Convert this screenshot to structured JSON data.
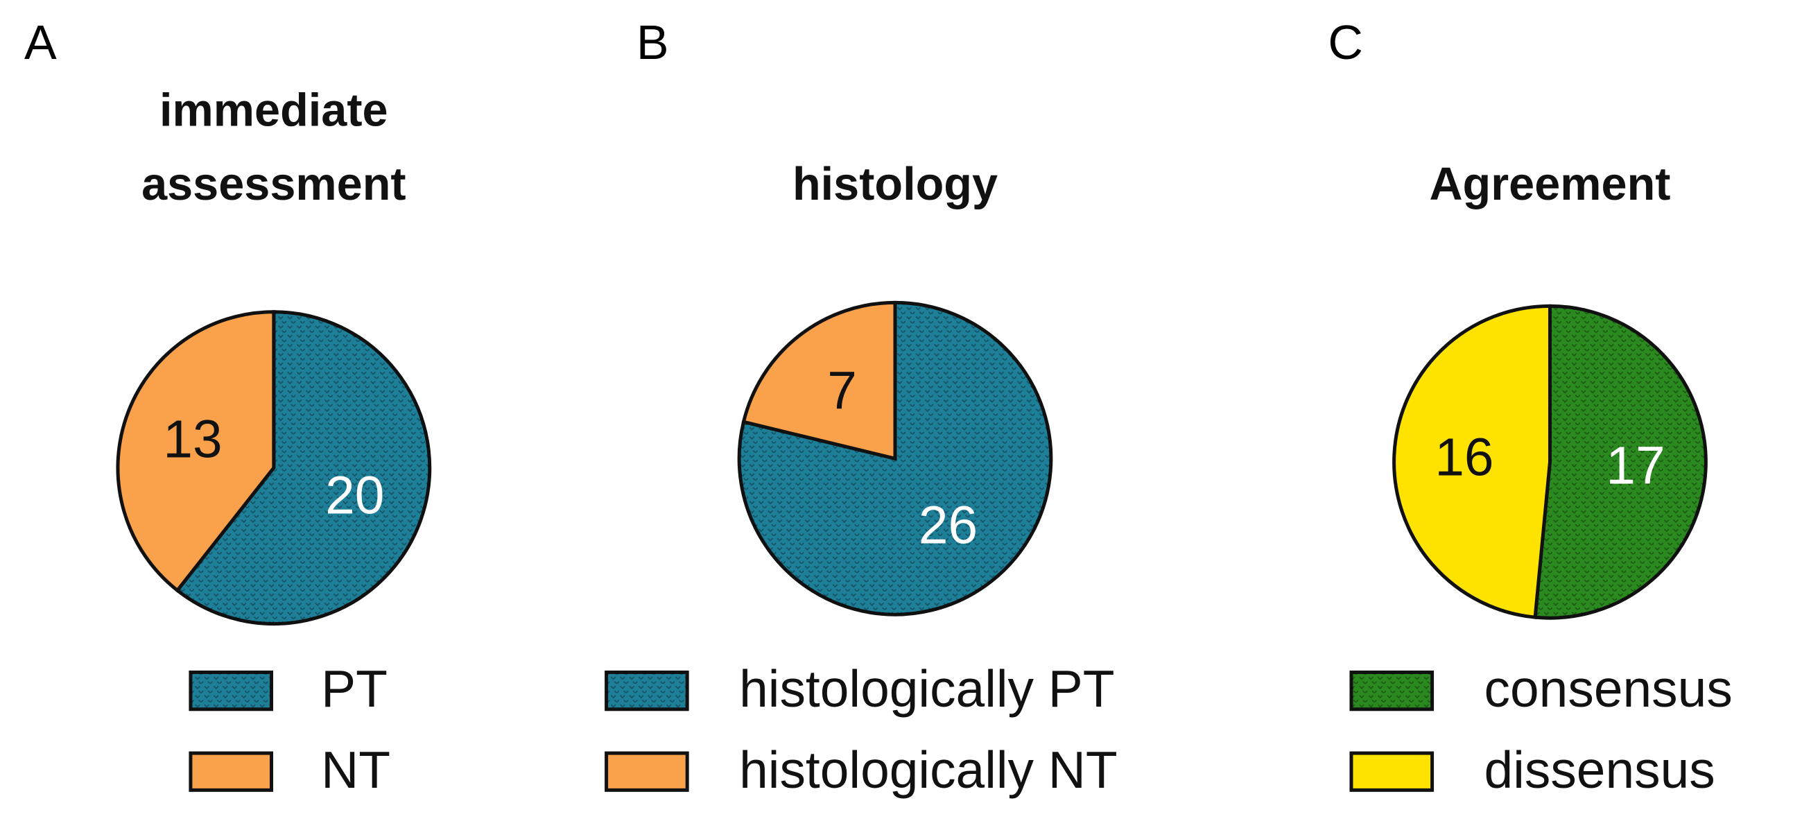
{
  "chart_data": [
    {
      "type": "pie",
      "panel": "A",
      "title": "immediate assessment",
      "labels": [
        "PT",
        "NT"
      ],
      "values": [
        20,
        13
      ],
      "colors": [
        "#1e7f99",
        "#f9a24b"
      ],
      "textured": [
        true,
        false
      ]
    },
    {
      "type": "pie",
      "panel": "B",
      "title": "histology",
      "labels": [
        "histologically PT",
        "histologically NT"
      ],
      "values": [
        26,
        7
      ],
      "colors": [
        "#1e7f99",
        "#f9a24b"
      ],
      "textured": [
        true,
        false
      ]
    },
    {
      "type": "pie",
      "panel": "C",
      "title": "Agreement",
      "labels": [
        "consensus",
        "dissensus"
      ],
      "values": [
        17,
        16
      ],
      "colors": [
        "#2b8a1f",
        "#ffe300"
      ],
      "textured": [
        true,
        false
      ]
    }
  ]
}
